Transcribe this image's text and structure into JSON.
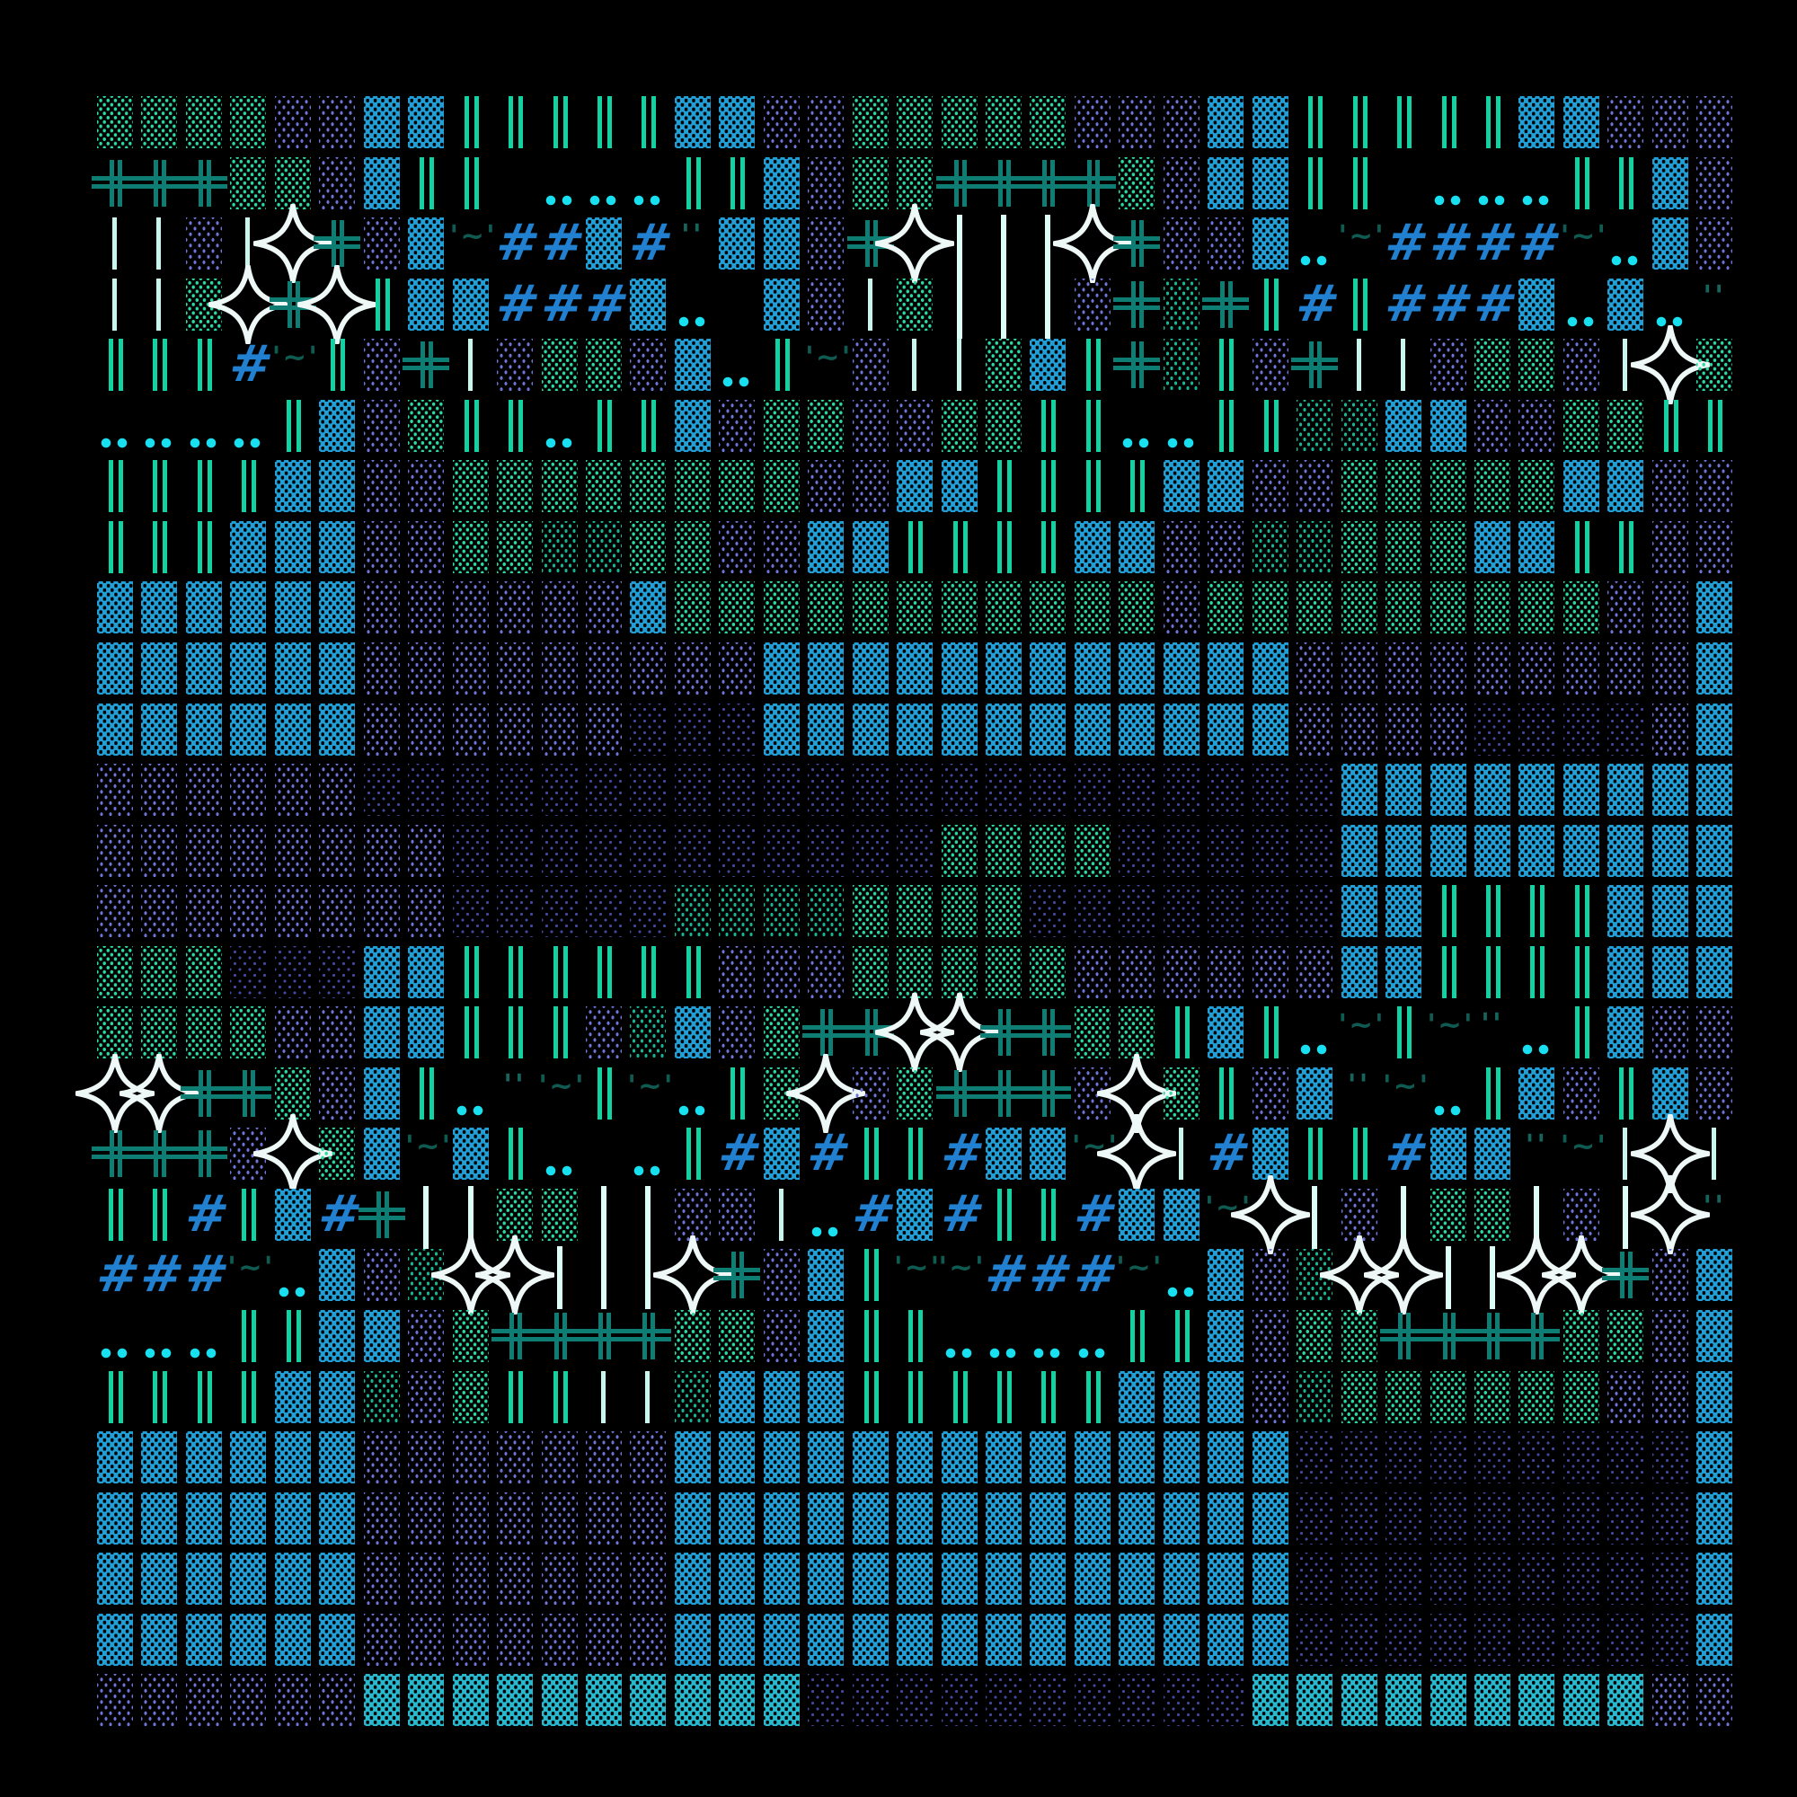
{
  "background": "#000000",
  "palette": {
    "green_dots": "#2bd9a4",
    "teal_dots": "#16b493",
    "indigo_dots": "#6f74d9",
    "navy_dots": "#4347a0",
    "blue_waffle": "#219fd6",
    "cyan_waffle": "#28b9cf",
    "bar_green": "#12d1a2",
    "bar_pale": "#c9f7ee",
    "bar_white": "#ddfdf7",
    "cross_teal": "#0e7d74",
    "star_white": "#eef9f7",
    "hash_blue": "#2180cf",
    "tilde_teal": "#0f5b52",
    "quote_teal": "#15655c",
    "dot_cyan": "#19e0f0"
  },
  "legend": {
    "g": {
      "name": "dot-block-green",
      "type": "dots",
      "color": "#2bd9a4"
    },
    "t": {
      "name": "dot-block-teal",
      "type": "dots",
      "color": "#16b493"
    },
    "i": {
      "name": "dot-block-indigo",
      "type": "dots",
      "color": "#6f74d9"
    },
    "n": {
      "name": "dot-block-navy",
      "type": "dots",
      "color": "#4347a0"
    },
    "b": {
      "name": "waffle-block-blue",
      "type": "waffle",
      "color": "#219fd6"
    },
    "c": {
      "name": "waffle-block-cyan",
      "type": "waffle",
      "color": "#28b9cf"
    },
    "d": {
      "name": "double-bar-green",
      "type": "bars",
      "color": "#12d1a2"
    },
    "s": {
      "name": "single-bar-pale",
      "type": "bar",
      "color": "#c9f7ee"
    },
    "w": {
      "name": "tall-bar-white",
      "type": "bar",
      "color": "#ddfdf7"
    },
    "+": {
      "name": "double-cross-teal",
      "type": "cross",
      "color": "#0e7d74"
    },
    "*": {
      "name": "four-point-star",
      "type": "star",
      "color": "#eef9f7"
    },
    "#": {
      "name": "hash-glyph",
      "type": "text",
      "text": "#",
      "color": "#2180cf"
    },
    "~": {
      "name": "tilde-quote-glyph",
      "type": "text",
      "text": "'~'",
      "color": "#0f5b52"
    },
    "q": {
      "name": "quote-glyph",
      "type": "text",
      "text": "''",
      "color": "#15655c"
    },
    ":": {
      "name": "cyan-dot-pair",
      "type": "colon",
      "color": "#19e0f0"
    },
    ".": {
      "name": "empty",
      "type": "empty"
    }
  },
  "grid": {
    "columns": 37,
    "rows": 27,
    "cells": [
      "ggggiibbdddddbbiigggggiiibbdddddbbiii",
      "+++ggibdd.:::ddbigg++++gibbdd.:::ddbi",
      "ssis*+ib~##b#qbbi+*www*+iib:~####~:bi",
      "ssg*+*dbb###b:.bisgwwwi+t+d#d###b:b:q",
      "ddd#~di+siggib:d~issgbd+tdi+ssiggis*g",
      "::::dbigdd:ddbiggiiggdd::ddttbbiiggdd",
      "ddddbbiiggggggggiibbddddbbiigggggbbii",
      "dddbbbiiggttggiibbddddbbiittgggbbddii",
      "bbbbbbiiiiiibgggggggggggigggggggggiib",
      "bbbbbbiiiiiiiiibbbbbbbbbbbbiiiiiiiiib",
      "bbbbbbiiiiiinnnbbbbbbbbbbbbiiiinnnnib",
      "iiiiiinnnnnnnnnnnnnnnnnnnnnnbbbbbbbbb",
      "iiiiiiiinnnnnnnnnnnggggnnnnnbbbbbbbbb",
      "iiiiiiiinnnnnttttggggnnnnnnnbbddddbbb",
      "gggnnnbbddddddiiigggggiiiiiibbddddbbb",
      "ggggiibbddditbig++**++ggdbd:~d~q:dbii",
      "**++gibd:q~d~:dg*ig+++i*gdibq~:dbidbi",
      "+++i*gb~bd:.:d#b#dd#bb~*s#bdd#bbq~s*s",
      "dd#db#+wwggwwiis:#b#dd#bb~*wiwggwiw*q",
      "###~:bit**www*+ibd~~###~:bit**ww**+ib",
      ":::ddbbig++++ggibdd::::ddbigg++++ggib",
      "ddddbbtigddsstbbbddddddbbbitggggggiib",
      "bbbbbbiiiiiiibbbbbbbbbbbbbbnnnnnnnnnb",
      "bbbbbbiiiiiiibbbbbbbbbbbbbbnnnnnnnnnb",
      "bbbbbbiiiiiiibbbbbbbbbbbbbbnnnnnnnnnb",
      "bbbbbbiiiiiiibbbbbbbbbbbbbbnnnnnnnnnb",
      "iiiiiiccccccccccnnnnnnnnnncccccccccii"
    ]
  }
}
